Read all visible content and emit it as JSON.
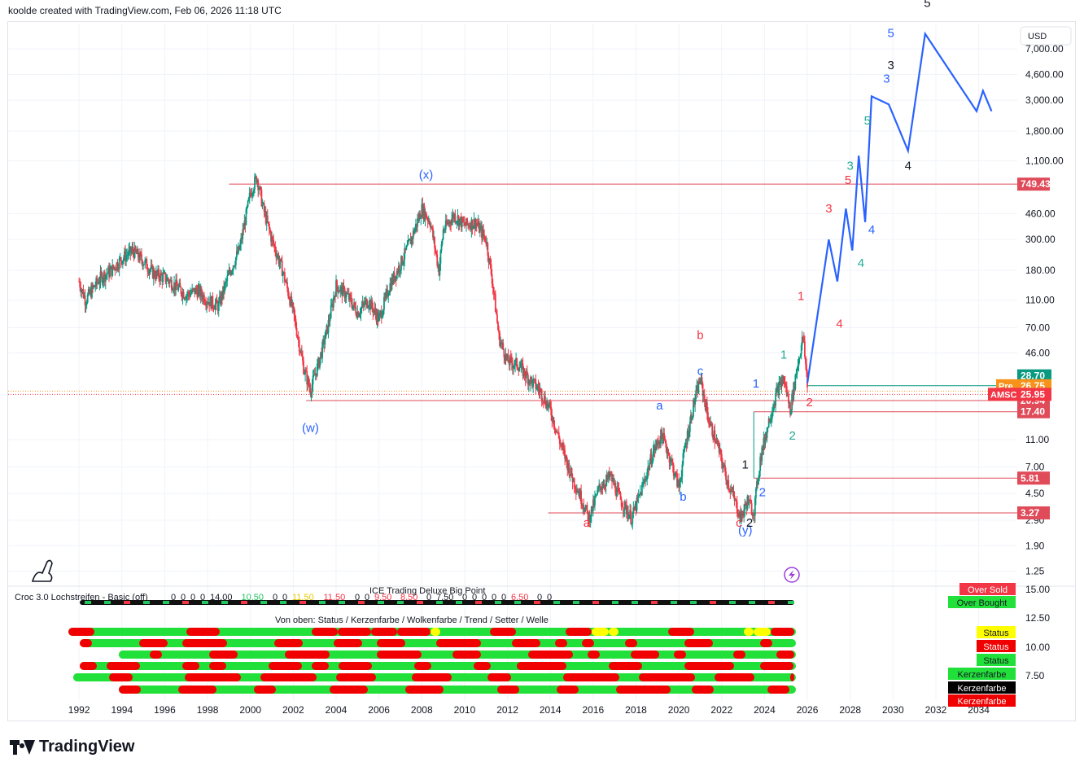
{
  "header": {
    "attribution": "koolde created with TradingView.com, Feb 06, 2026 11:18 UTC"
  },
  "footer": {
    "brand": "TradingView"
  },
  "colors": {
    "up": "#089981",
    "down": "#f23645",
    "wave_blue": "#2962ff",
    "level_red": "#e04b5a",
    "teal": "#22ab94"
  },
  "chart_data": {
    "type": "line",
    "symbol": "AMSC",
    "currency": "USD",
    "yscale": "log",
    "xlabel": "",
    "ylabel": "",
    "ylim": [
      1.0,
      10500
    ],
    "xlim": [
      1991.5,
      2035.8
    ],
    "x_ticks": [
      "1992",
      "1994",
      "1996",
      "1998",
      "2000",
      "2002",
      "2004",
      "2006",
      "2008",
      "2010",
      "2012",
      "2014",
      "2016",
      "2018",
      "2020",
      "2022",
      "2024",
      "2026",
      "2028",
      "2030",
      "2032",
      "2034"
    ],
    "y_ticks": [
      "7,000.00",
      "4,600.00",
      "3,000.00",
      "1,800.00",
      "1,100.00",
      "460.00",
      "300.00",
      "180.00",
      "110.00",
      "70.00",
      "46.00",
      "11.00",
      "7.00",
      "4.50",
      "2.90",
      "1.90",
      "1.25"
    ],
    "price_series": {
      "x": [
        1992.0,
        1992.3,
        1992.6,
        1993.0,
        1993.5,
        1994.0,
        1994.5,
        1995.0,
        1995.5,
        1996.0,
        1996.5,
        1997.0,
        1997.5,
        1998.0,
        1998.5,
        1999.0,
        1999.5,
        2000.0,
        2000.3,
        2000.6,
        2001.0,
        2001.5,
        2002.0,
        2002.5,
        2002.8,
        2003.2,
        2003.6,
        2004.0,
        2004.5,
        2005.0,
        2005.5,
        2006.0,
        2006.5,
        2007.0,
        2007.5,
        2008.0,
        2008.4,
        2008.8,
        2009.0,
        2009.5,
        2010.0,
        2010.5,
        2011.0,
        2011.3,
        2011.6,
        2012.0,
        2012.5,
        2013.0,
        2013.5,
        2014.0,
        2014.5,
        2015.0,
        2015.5,
        2015.8,
        2016.3,
        2016.8,
        2017.3,
        2017.8,
        2018.3,
        2018.8,
        2019.2,
        2019.6,
        2020.0,
        2020.3,
        2020.7,
        2021.0,
        2021.4,
        2021.8,
        2022.2,
        2022.6,
        2022.9,
        2023.2,
        2023.5,
        2023.8,
        2024.2,
        2024.6,
        2024.9,
        2025.2,
        2025.5,
        2025.8,
        2026.0
      ],
      "y": [
        150,
        110,
        130,
        160,
        180,
        220,
        250,
        210,
        170,
        160,
        140,
        120,
        130,
        110,
        100,
        170,
        260,
        650,
        850,
        500,
        300,
        180,
        90,
        35,
        25,
        40,
        70,
        140,
        120,
        90,
        110,
        80,
        140,
        200,
        300,
        500,
        400,
        180,
        350,
        450,
        380,
        400,
        300,
        150,
        60,
        40,
        38,
        30,
        25,
        18,
        10,
        6,
        4,
        3,
        5,
        6,
        4,
        3,
        5,
        9,
        12,
        8,
        5,
        10,
        20,
        30,
        15,
        10,
        6,
        4,
        3,
        4,
        3.3,
        8,
        15,
        25,
        30,
        18,
        35,
        60,
        28
      ]
    },
    "projection": {
      "x": [
        2026.0,
        2027.0,
        2027.4,
        2027.8,
        2028.1,
        2028.4,
        2028.7,
        2029.0,
        2029.8,
        2030.7,
        2031.5,
        2033.9,
        2034.2,
        2034.6
      ],
      "y": [
        28,
        300,
        150,
        500,
        250,
        1200,
        400,
        3200,
        2800,
        1300,
        9000,
        2500,
        3500,
        2500
      ]
    },
    "horizontal_levels": [
      {
        "label": "749.43",
        "value": 749.43,
        "from": 1999.0
      },
      {
        "label": "20.94",
        "value": 20.94,
        "from": 2002.6
      },
      {
        "label": "17.40",
        "value": 17.4,
        "from": 2023.5
      },
      {
        "label": "5.81",
        "value": 5.81,
        "from": 2023.5
      },
      {
        "label": "3.27",
        "value": 3.27,
        "from": 2013.9
      },
      {
        "label": "26.75",
        "value": 26.75,
        "from": 2026.0,
        "color": "#089981"
      }
    ],
    "price_tags": [
      {
        "label": "28.70",
        "value": 31.5,
        "color": "#089981"
      },
      {
        "label": "Pre",
        "value": 26.75,
        "color": "#f7931a",
        "extra": "26.75"
      },
      {
        "label": "AMSC",
        "value": 23.2,
        "color": "#f23645",
        "extra": "25.95"
      }
    ],
    "wave_labels": [
      {
        "text": "(x)",
        "x": 2008.2,
        "y": 820,
        "color": "#2962ff"
      },
      {
        "text": "(w)",
        "x": 2002.8,
        "y": 12.5,
        "color": "#2962ff"
      },
      {
        "text": "(y)",
        "x": 2023.1,
        "y": 2.3,
        "color": "#2962ff"
      },
      {
        "text": "a",
        "x": 2015.7,
        "y": 2.6,
        "color": "#f23645"
      },
      {
        "text": "b",
        "x": 2021.0,
        "y": 58,
        "color": "#f23645"
      },
      {
        "text": "c",
        "x": 2021.0,
        "y": 32,
        "color": "#2962ff"
      },
      {
        "text": "a",
        "x": 2019.1,
        "y": 18,
        "color": "#2962ff"
      },
      {
        "text": "b",
        "x": 2020.2,
        "y": 4,
        "color": "#2962ff"
      },
      {
        "text": "c",
        "x": 2022.8,
        "y": 2.6,
        "color": "#f23645"
      },
      {
        "text": "2",
        "x": 2023.3,
        "y": 2.6,
        "color": "#131722"
      },
      {
        "text": "1",
        "x": 2023.1,
        "y": 6.8,
        "color": "#131722"
      },
      {
        "text": "2",
        "x": 2023.9,
        "y": 4.3,
        "color": "#2962ff"
      },
      {
        "text": "1",
        "x": 2023.6,
        "y": 26,
        "color": "#2962ff"
      },
      {
        "text": "2",
        "x": 2025.3,
        "y": 11,
        "color": "#22ab94"
      },
      {
        "text": "1",
        "x": 2024.9,
        "y": 42,
        "color": "#22ab94"
      },
      {
        "text": "1",
        "x": 2025.7,
        "y": 110,
        "color": "#f23645"
      },
      {
        "text": "2",
        "x": 2026.1,
        "y": 19,
        "color": "#f23645"
      },
      {
        "text": "3",
        "x": 2027.0,
        "y": 470,
        "color": "#f23645"
      },
      {
        "text": "4",
        "x": 2027.5,
        "y": 70,
        "color": "#f23645"
      },
      {
        "text": "5",
        "x": 2027.9,
        "y": 750,
        "color": "#f23645"
      },
      {
        "text": "3",
        "x": 2028.0,
        "y": 950,
        "color": "#22ab94"
      },
      {
        "text": "4",
        "x": 2028.5,
        "y": 190,
        "color": "#22ab94"
      },
      {
        "text": "5",
        "x": 2028.8,
        "y": 2000,
        "color": "#22ab94"
      },
      {
        "text": "4",
        "x": 2029.0,
        "y": 330,
        "color": "#2962ff"
      },
      {
        "text": "3",
        "x": 2029.7,
        "y": 4000,
        "color": "#2962ff"
      },
      {
        "text": "5",
        "x": 2029.9,
        "y": 8500,
        "color": "#2962ff"
      },
      {
        "text": "3",
        "x": 2029.9,
        "y": 5000,
        "color": "#131722"
      },
      {
        "text": "4",
        "x": 2030.7,
        "y": 950,
        "color": "#131722"
      },
      {
        "text": "5",
        "x": 2031.6,
        "y": 14000,
        "color": "#131722"
      }
    ]
  },
  "indicators": {
    "croc_label": "Croc 3.0 Lochstreifen - Basic (off)",
    "croc_values": [
      {
        "t": "0",
        "c": "#131722"
      },
      {
        "t": "0",
        "c": "#131722"
      },
      {
        "t": "0",
        "c": "#131722"
      },
      {
        "t": "0",
        "c": "#131722"
      },
      {
        "t": "14.00",
        "c": "#131722"
      },
      {
        "t": "10.50",
        "c": "#22c55e"
      },
      {
        "t": "0",
        "c": "#131722"
      },
      {
        "t": "0",
        "c": "#131722"
      },
      {
        "t": "11.50",
        "c": "#e6c800"
      },
      {
        "t": "11.50",
        "c": "#f23645"
      },
      {
        "t": "0",
        "c": "#131722"
      },
      {
        "t": "0",
        "c": "#131722"
      },
      {
        "t": "9.50",
        "c": "#f23645"
      },
      {
        "t": "8.50",
        "c": "#f23645"
      },
      {
        "t": "0",
        "c": "#131722"
      },
      {
        "t": "7.50",
        "c": "#131722"
      },
      {
        "t": "0",
        "c": "#131722"
      },
      {
        "t": "0",
        "c": "#131722"
      },
      {
        "t": "0",
        "c": "#131722"
      },
      {
        "t": "0",
        "c": "#131722"
      },
      {
        "t": "0",
        "c": "#131722"
      },
      {
        "t": "6.50",
        "c": "#f23645"
      },
      {
        "t": "0",
        "c": "#131722"
      },
      {
        "t": "0",
        "c": "#131722"
      }
    ],
    "ice_label": "ICE Trading Deluxe Big Point",
    "legend_label": "Von oben: Status / Kerzenfarbe / Wolkenfarbe / Trend / Setter / Welle",
    "right_tags": [
      {
        "label": "Over Sold",
        "bg": "#f23645",
        "fg": "#ffffff"
      },
      {
        "label": "Over Bought",
        "bg": "#22e03a",
        "fg": "#131722"
      },
      {
        "label": "Status",
        "bg": "#ffff00",
        "fg": "#131722"
      },
      {
        "label": "Status",
        "bg": "#f00000",
        "fg": "#ffffff"
      },
      {
        "label": "Status",
        "bg": "#22e03a",
        "fg": "#131722"
      },
      {
        "label": "Kerzenfarbe",
        "bg": "#22e03a",
        "fg": "#131722"
      },
      {
        "label": "Kerzenfarbe",
        "bg": "#000000",
        "fg": "#ffffff"
      },
      {
        "label": "Kerzenfarbe",
        "bg": "#f00000",
        "fg": "#ffffff"
      }
    ],
    "axis_ticks": [
      "15.00",
      "12.50",
      "10.00",
      "7.50"
    ]
  }
}
